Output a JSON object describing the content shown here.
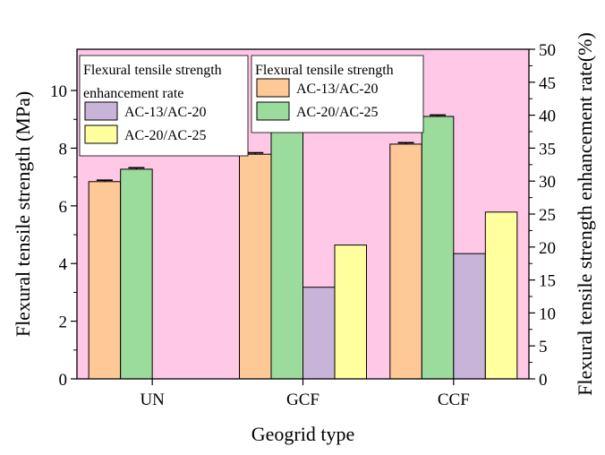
{
  "chart_data": {
    "type": "bar",
    "categories": [
      "UN",
      "GCF",
      "CCF"
    ],
    "xlabel": "Geogrid type",
    "ylabel": "Flexural tensile strength (MPa)",
    "ylabel_right": "Flexural tensile strength enhancement rate(%)",
    "ylim": [
      0,
      11.43
    ],
    "ylim_right": [
      0,
      50
    ],
    "yticks": [
      0,
      2,
      4,
      6,
      8,
      10
    ],
    "yticks_right": [
      0,
      5,
      10,
      15,
      20,
      25,
      30,
      35,
      40,
      45,
      50
    ],
    "grid": false,
    "background_color": "#ffc8e6",
    "legend_groups": [
      {
        "title_lines": [
          "Flexural tensile strength",
          "enhancement rate"
        ],
        "placement": "top-left",
        "entries": [
          {
            "name": "AC-13/AC-20",
            "color": "#c8b4d8"
          },
          {
            "name": "AC-20/AC-25",
            "color": "#ffff9e"
          }
        ]
      },
      {
        "title_lines": [
          "Flexural tensile strength"
        ],
        "placement": "top-center",
        "entries": [
          {
            "name": "AC-13/AC-20",
            "color": "#ffc997"
          },
          {
            "name": "AC-20/AC-25",
            "color": "#9bdb9b"
          }
        ]
      }
    ],
    "series": [
      {
        "name": "AC-13/AC-20",
        "axis": "left",
        "color": "#ffc997",
        "values": [
          6.84,
          7.79,
          8.14
        ],
        "error": [
          0.05,
          0.05,
          0.05
        ]
      },
      {
        "name": "AC-20/AC-25",
        "axis": "left",
        "color": "#9bdb9b",
        "values": [
          7.27,
          8.7,
          9.1
        ],
        "error": [
          0.05,
          0.05,
          0.05
        ]
      },
      {
        "name": "AC-13/AC-20",
        "axis": "right",
        "color": "#c8b4d8",
        "values": [
          null,
          13.9,
          19.0
        ]
      },
      {
        "name": "AC-20/AC-25",
        "axis": "right",
        "color": "#ffff9e",
        "values": [
          null,
          20.3,
          25.3
        ]
      }
    ]
  }
}
